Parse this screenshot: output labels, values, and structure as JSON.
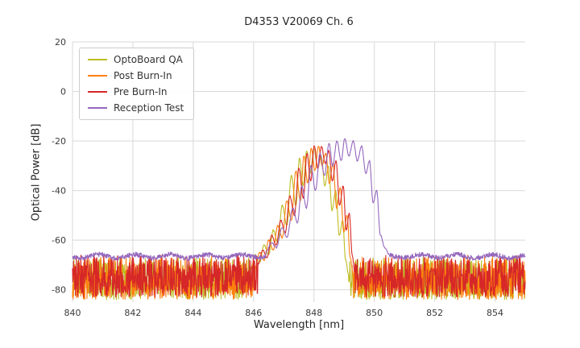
{
  "chart_data": {
    "type": "line",
    "title": "D4353 V20069 Ch. 6",
    "xlabel": "Wavelength [nm]",
    "ylabel": "Optical Power [dB]",
    "xlim": [
      840,
      855
    ],
    "ylim": [
      -85,
      20
    ],
    "xticks": [
      840,
      842,
      844,
      846,
      848,
      850,
      852,
      854
    ],
    "yticks": [
      -80,
      -60,
      -40,
      -20,
      0,
      20
    ],
    "grid": true,
    "grid_color": "#d9d9d9",
    "tick_color": "#3a3a3a",
    "legend_position": "upper left",
    "series": [
      {
        "name": "OptoBoard QA",
        "color": "#bcbd22",
        "noise_floor": {
          "min": -84,
          "max": -67,
          "smooth": false
        },
        "envelope": [
          [
            845.9,
            -72
          ],
          [
            846.05,
            -66
          ],
          [
            846.2,
            -69
          ],
          [
            846.35,
            -62
          ],
          [
            846.5,
            -66
          ],
          [
            846.65,
            -56
          ],
          [
            846.8,
            -61
          ],
          [
            846.95,
            -46
          ],
          [
            847.1,
            -54
          ],
          [
            847.25,
            -34
          ],
          [
            847.4,
            -46
          ],
          [
            847.52,
            -27
          ],
          [
            847.64,
            -38
          ],
          [
            847.76,
            -24
          ],
          [
            847.88,
            -33
          ],
          [
            848.0,
            -23
          ],
          [
            848.12,
            -31
          ],
          [
            848.24,
            -26
          ],
          [
            848.36,
            -38
          ],
          [
            848.48,
            -30
          ],
          [
            848.6,
            -48
          ],
          [
            848.72,
            -40
          ],
          [
            848.84,
            -58
          ],
          [
            848.95,
            -52
          ],
          [
            849.05,
            -68
          ],
          [
            849.15,
            -74
          ]
        ]
      },
      {
        "name": "Post Burn-In",
        "color": "#ff7f0e",
        "noise_floor": {
          "min": -84,
          "max": -66,
          "smooth": false
        },
        "envelope": [
          [
            846.05,
            -71
          ],
          [
            846.2,
            -65
          ],
          [
            846.35,
            -68
          ],
          [
            846.5,
            -60
          ],
          [
            846.65,
            -64
          ],
          [
            846.8,
            -54
          ],
          [
            846.95,
            -59
          ],
          [
            847.1,
            -44
          ],
          [
            847.25,
            -52
          ],
          [
            847.4,
            -32
          ],
          [
            847.55,
            -44
          ],
          [
            847.67,
            -26
          ],
          [
            847.79,
            -37
          ],
          [
            847.91,
            -23
          ],
          [
            848.03,
            -32
          ],
          [
            848.15,
            -22
          ],
          [
            848.27,
            -30
          ],
          [
            848.39,
            -25
          ],
          [
            848.51,
            -37
          ],
          [
            848.63,
            -29
          ],
          [
            848.75,
            -47
          ],
          [
            848.87,
            -39
          ],
          [
            848.99,
            -57
          ],
          [
            849.1,
            -50
          ],
          [
            849.2,
            -67
          ],
          [
            849.3,
            -74
          ]
        ]
      },
      {
        "name": "Pre Burn-In",
        "color": "#d62728",
        "noise_floor": {
          "min": -83,
          "max": -66,
          "smooth": false
        },
        "envelope": [
          [
            846.15,
            -70
          ],
          [
            846.3,
            -64
          ],
          [
            846.45,
            -67
          ],
          [
            846.6,
            -58
          ],
          [
            846.75,
            -62
          ],
          [
            846.9,
            -52
          ],
          [
            847.05,
            -57
          ],
          [
            847.2,
            -42
          ],
          [
            847.35,
            -50
          ],
          [
            847.5,
            -31
          ],
          [
            847.65,
            -43
          ],
          [
            847.77,
            -25
          ],
          [
            847.89,
            -36
          ],
          [
            848.01,
            -22
          ],
          [
            848.13,
            -31
          ],
          [
            848.25,
            -22
          ],
          [
            848.37,
            -29
          ],
          [
            848.49,
            -24
          ],
          [
            848.61,
            -36
          ],
          [
            848.73,
            -28
          ],
          [
            848.85,
            -46
          ],
          [
            848.97,
            -38
          ],
          [
            849.07,
            -56
          ],
          [
            849.17,
            -49
          ],
          [
            849.27,
            -66
          ],
          [
            849.35,
            -73
          ]
        ]
      },
      {
        "name": "Reception Test",
        "color": "#9467bd",
        "noise_floor": {
          "base": -66.5,
          "smooth": true
        },
        "envelope": [
          [
            846.4,
            -65
          ],
          [
            846.6,
            -61
          ],
          [
            846.75,
            -63
          ],
          [
            846.95,
            -55
          ],
          [
            847.1,
            -59
          ],
          [
            847.3,
            -47
          ],
          [
            847.45,
            -53
          ],
          [
            847.6,
            -38
          ],
          [
            847.75,
            -47
          ],
          [
            847.9,
            -30
          ],
          [
            848.05,
            -40
          ],
          [
            848.2,
            -25
          ],
          [
            848.35,
            -34
          ],
          [
            848.5,
            -21
          ],
          [
            848.62,
            -30
          ],
          [
            848.76,
            -20
          ],
          [
            848.9,
            -28
          ],
          [
            849.02,
            -19
          ],
          [
            849.16,
            -26
          ],
          [
            849.3,
            -20
          ],
          [
            849.44,
            -28
          ],
          [
            849.58,
            -22
          ],
          [
            849.72,
            -33
          ],
          [
            849.84,
            -28
          ],
          [
            849.96,
            -45
          ],
          [
            850.08,
            -40
          ],
          [
            850.2,
            -58
          ],
          [
            850.35,
            -63
          ],
          [
            850.5,
            -66
          ]
        ]
      }
    ]
  }
}
